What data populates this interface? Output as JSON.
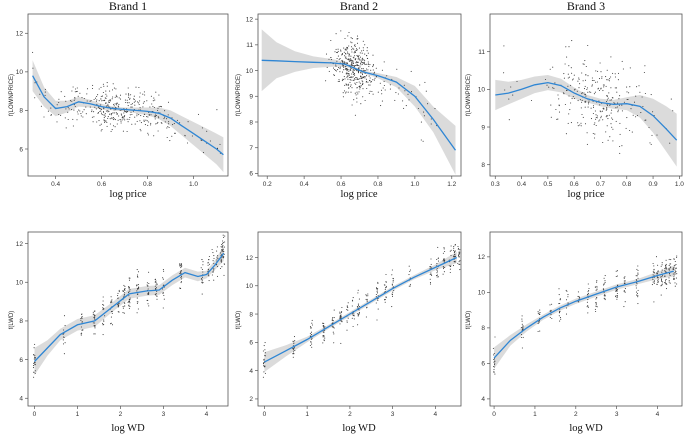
{
  "chart_data": [
    {
      "type": "scatter",
      "title": "Brand 1",
      "xlabel": "log price",
      "ylabel": "f(LOWNPRICE)",
      "xlim": [
        0.28,
        1.15
      ],
      "ylim": [
        4.6,
        13.0
      ],
      "xticks": [
        0.4,
        0.6,
        0.8,
        1.0
      ],
      "xtick_labels": [
        "0.4",
        "0.6",
        "0.8",
        "1.0"
      ],
      "yticks": [
        6,
        8,
        10,
        12
      ],
      "ytick_labels": [
        "6",
        "8",
        "10",
        "12"
      ],
      "fit": {
        "x": [
          0.3,
          0.35,
          0.4,
          0.45,
          0.5,
          0.55,
          0.6,
          0.65,
          0.7,
          0.75,
          0.8,
          0.85,
          0.9,
          0.95,
          1.0,
          1.05,
          1.1,
          1.13
        ],
        "y": [
          9.8,
          8.7,
          8.1,
          8.2,
          8.45,
          8.35,
          8.2,
          8.1,
          8.05,
          8.0,
          7.95,
          7.85,
          7.6,
          7.2,
          6.8,
          6.4,
          6.0,
          5.7
        ],
        "lower": [
          9.0,
          8.2,
          7.7,
          7.9,
          8.2,
          8.15,
          8.05,
          8.0,
          7.95,
          7.85,
          7.75,
          7.55,
          7.2,
          6.7,
          6.2,
          5.7,
          5.2,
          4.8
        ],
        "upper": [
          10.6,
          9.2,
          8.5,
          8.5,
          8.7,
          8.55,
          8.35,
          8.2,
          8.15,
          8.15,
          8.15,
          8.15,
          8.0,
          7.7,
          7.4,
          7.1,
          6.8,
          6.6
        ]
      },
      "scatter": {
        "n": 420,
        "x_center": 0.68,
        "x_spread": 0.13,
        "x_min": 0.3,
        "x_max": 1.12,
        "noise": 0.55,
        "seed": 11
      }
    },
    {
      "type": "scatter",
      "title": "Brand 2",
      "xlabel": "log price",
      "ylabel": "f(LOWNPRICE)",
      "xlim": [
        0.15,
        1.25
      ],
      "ylim": [
        5.9,
        12.2
      ],
      "xticks": [
        0.2,
        0.4,
        0.6,
        0.8,
        1.0,
        1.2
      ],
      "xtick_labels": [
        "0.2",
        "0.4",
        "0.6",
        "0.8",
        "1.0",
        "1.2"
      ],
      "yticks": [
        6,
        7,
        8,
        9,
        10,
        11,
        12
      ],
      "ytick_labels": [
        "6",
        "7",
        "8",
        "9",
        "10",
        "11",
        "12"
      ],
      "fit": {
        "x": [
          0.17,
          0.25,
          0.35,
          0.45,
          0.55,
          0.62,
          0.67,
          0.72,
          0.8,
          0.9,
          1.0,
          1.1,
          1.22
        ],
        "y": [
          10.4,
          10.38,
          10.35,
          10.32,
          10.3,
          10.25,
          10.1,
          9.95,
          9.8,
          9.55,
          9.0,
          8.1,
          6.9
        ],
        "lower": [
          9.2,
          9.7,
          9.95,
          10.1,
          10.15,
          10.15,
          10.05,
          9.9,
          9.7,
          9.35,
          8.6,
          7.6,
          5.95
        ],
        "upper": [
          11.6,
          11.1,
          10.75,
          10.55,
          10.45,
          10.35,
          10.15,
          10.0,
          9.9,
          9.75,
          9.4,
          8.6,
          7.85
        ]
      },
      "scatter": {
        "n": 450,
        "x_center": 0.67,
        "x_spread": 0.05,
        "x_min": 0.5,
        "x_max": 1.12,
        "noise": 0.5,
        "seed": 23
      }
    },
    {
      "type": "scatter",
      "title": "Brand 3",
      "xlabel": "log price",
      "ylabel": "f(LOWNPRICE)",
      "xlim": [
        0.28,
        1.01
      ],
      "ylim": [
        7.7,
        12.0
      ],
      "xticks": [
        0.3,
        0.4,
        0.5,
        0.6,
        0.7,
        0.8,
        0.9,
        1.0
      ],
      "xtick_labels": [
        "0.3",
        "0.4",
        "0.5",
        "0.6",
        "0.7",
        "0.8",
        "0.9",
        "1.0"
      ],
      "yticks": [
        8,
        9,
        10,
        11
      ],
      "ytick_labels": [
        "8",
        "9",
        "10",
        "11"
      ],
      "fit": {
        "x": [
          0.3,
          0.35,
          0.4,
          0.45,
          0.5,
          0.55,
          0.6,
          0.65,
          0.7,
          0.75,
          0.8,
          0.85,
          0.9,
          0.95,
          0.99
        ],
        "y": [
          9.85,
          9.9,
          10.0,
          10.12,
          10.18,
          10.1,
          9.9,
          9.75,
          9.65,
          9.6,
          9.62,
          9.55,
          9.3,
          8.95,
          8.65
        ],
        "lower": [
          9.45,
          9.6,
          9.75,
          9.9,
          9.98,
          9.92,
          9.75,
          9.65,
          9.55,
          9.48,
          9.45,
          9.25,
          8.85,
          8.35,
          7.95
        ],
        "upper": [
          10.25,
          10.2,
          10.25,
          10.34,
          10.38,
          10.28,
          10.05,
          9.85,
          9.75,
          9.72,
          9.79,
          9.85,
          9.75,
          9.55,
          9.35
        ]
      },
      "scatter": {
        "n": 300,
        "x_center": 0.69,
        "x_spread": 0.09,
        "x_min": 0.3,
        "x_max": 0.99,
        "noise": 0.55,
        "seed": 37
      }
    },
    {
      "type": "scatter",
      "title": "",
      "xlabel": "log WD",
      "ylabel": "f(LWD)",
      "xlim": [
        -0.15,
        4.5
      ],
      "ylim": [
        3.6,
        12.6
      ],
      "xticks": [
        0,
        1,
        2,
        3,
        4
      ],
      "xtick_labels": [
        "0",
        "1",
        "2",
        "3",
        "4"
      ],
      "yticks": [
        4,
        6,
        8,
        10,
        12
      ],
      "ytick_labels": [
        "4",
        "6",
        "8",
        "10",
        "12"
      ],
      "fit": {
        "x": [
          0.0,
          0.3,
          0.6,
          1.0,
          1.4,
          1.8,
          2.2,
          2.6,
          2.9,
          3.2,
          3.5,
          3.8,
          4.0,
          4.2,
          4.4
        ],
        "y": [
          5.9,
          6.6,
          7.3,
          7.8,
          8.0,
          8.7,
          9.4,
          9.55,
          9.6,
          10.1,
          10.5,
          10.3,
          10.4,
          10.9,
          11.5
        ],
        "lower": [
          5.2,
          6.2,
          7.0,
          7.5,
          7.7,
          8.45,
          9.15,
          9.3,
          9.35,
          9.85,
          10.25,
          10.05,
          10.2,
          10.65,
          11.1
        ],
        "upper": [
          6.6,
          7.0,
          7.6,
          8.1,
          8.3,
          8.95,
          9.65,
          9.8,
          9.85,
          10.35,
          10.75,
          10.55,
          10.6,
          11.15,
          11.9
        ]
      },
      "scatter": {
        "n": 380,
        "x_groups": [
          0,
          0.69,
          1.1,
          1.39,
          1.61,
          1.79,
          1.95,
          2.08,
          2.2,
          2.4,
          2.64,
          2.83,
          3.0,
          3.4,
          3.9,
          4.05,
          4.15,
          4.25,
          4.35,
          4.4
        ],
        "noise": 0.45,
        "seed": 51
      }
    },
    {
      "type": "scatter",
      "title": "",
      "xlabel": "log WD",
      "ylabel": "f(LWD)",
      "xlim": [
        -0.15,
        4.6
      ],
      "ylim": [
        1.5,
        13.8
      ],
      "xticks": [
        0,
        1,
        2,
        3,
        4
      ],
      "xtick_labels": [
        "0",
        "1",
        "2",
        "3",
        "4"
      ],
      "yticks": [
        2,
        4,
        6,
        8,
        10,
        12
      ],
      "ytick_labels": [
        "2",
        "4",
        "6",
        "8",
        "10",
        "12"
      ],
      "fit": {
        "x": [
          0.0,
          0.5,
          1.0,
          1.5,
          2.0,
          2.5,
          3.0,
          3.5,
          4.0,
          4.5
        ],
        "y": [
          4.6,
          5.4,
          6.2,
          7.1,
          8.0,
          8.9,
          9.8,
          10.6,
          11.3,
          12.0
        ],
        "lower": [
          3.9,
          5.0,
          6.0,
          6.95,
          7.85,
          8.75,
          9.65,
          10.45,
          11.1,
          11.6
        ],
        "upper": [
          5.3,
          5.8,
          6.4,
          7.25,
          8.15,
          9.05,
          9.95,
          10.75,
          11.5,
          12.4
        ]
      },
      "scatter": {
        "n": 360,
        "x_groups": [
          0,
          0.69,
          1.1,
          1.39,
          1.61,
          1.79,
          1.95,
          2.08,
          2.2,
          2.4,
          2.64,
          2.83,
          3.0,
          3.4,
          3.9,
          4.05,
          4.2,
          4.35,
          4.45,
          4.55
        ],
        "noise": 0.5,
        "seed": 67
      }
    },
    {
      "type": "scatter",
      "title": "",
      "xlabel": "log WD",
      "ylabel": "f(LWD)",
      "xlim": [
        -0.1,
        4.6
      ],
      "ylim": [
        3.6,
        13.4
      ],
      "xticks": [
        0,
        1,
        2,
        3,
        4
      ],
      "xtick_labels": [
        "0",
        "1",
        "2",
        "3",
        "4"
      ],
      "yticks": [
        4,
        6,
        8,
        10,
        12
      ],
      "ytick_labels": [
        "4",
        "6",
        "8",
        "10",
        "12"
      ],
      "fit": {
        "x": [
          0.0,
          0.4,
          0.8,
          1.2,
          1.6,
          2.0,
          2.5,
          3.0,
          3.5,
          4.0,
          4.4
        ],
        "y": [
          6.3,
          7.3,
          8.0,
          8.6,
          9.1,
          9.5,
          9.9,
          10.3,
          10.6,
          10.95,
          11.2
        ],
        "lower": [
          5.7,
          7.0,
          7.8,
          8.45,
          8.95,
          9.35,
          9.75,
          10.15,
          10.45,
          10.75,
          10.9
        ],
        "upper": [
          6.9,
          7.6,
          8.2,
          8.75,
          9.25,
          9.65,
          10.05,
          10.45,
          10.75,
          11.15,
          11.5
        ]
      },
      "scatter": {
        "n": 340,
        "x_groups": [
          0,
          0.69,
          1.1,
          1.39,
          1.61,
          1.79,
          2.08,
          2.3,
          2.5,
          2.7,
          3.0,
          3.2,
          3.5,
          3.9,
          4.0,
          4.1,
          4.2,
          4.3,
          4.4,
          4.45
        ],
        "noise": 0.45,
        "seed": 83
      }
    }
  ]
}
